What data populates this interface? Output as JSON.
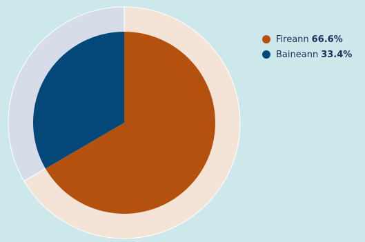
{
  "chart_data": {
    "type": "pie",
    "categories": [
      "Fireann",
      "Baineann"
    ],
    "values": [
      66.6,
      33.4
    ],
    "value_labels": [
      "66.6%",
      "33.4%"
    ],
    "colors": [
      "#b5510f",
      "#034878"
    ],
    "ring_colors": [
      "#f4e4d7",
      "#d6dde8"
    ],
    "legend_position": "right",
    "title": "",
    "xlabel": "",
    "ylabel": ""
  },
  "legend": {
    "items": [
      {
        "label": "Fireann",
        "value": "66.6%",
        "color": "#b5510f"
      },
      {
        "label": "Baineann",
        "value": "33.4%",
        "color": "#034878"
      }
    ]
  }
}
